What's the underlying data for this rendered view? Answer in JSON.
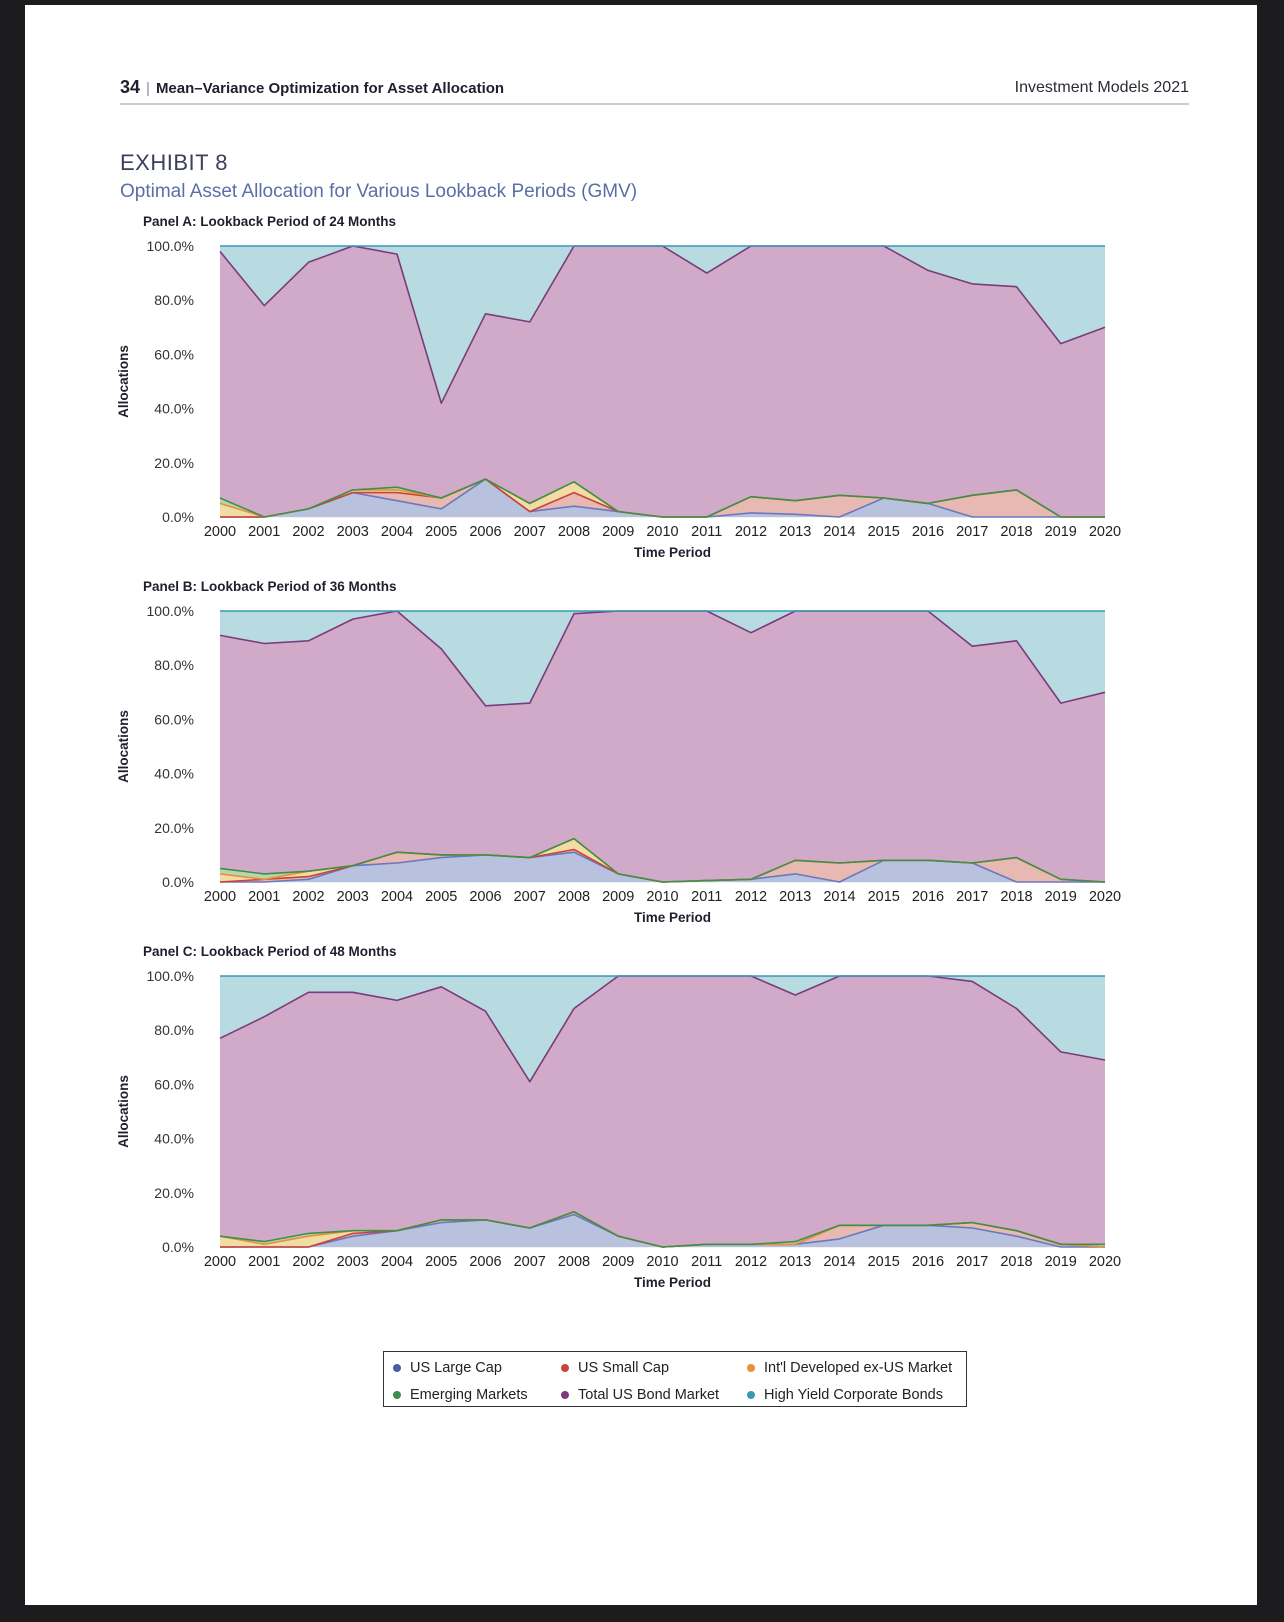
{
  "header": {
    "page_number": "34",
    "separator": "|",
    "chapter_title": "Mean–Variance Optimization for Asset Allocation",
    "publication": "Investment Models 2021"
  },
  "exhibit": {
    "label": "EXHIBIT 8",
    "title": "Optimal Asset Allocation for Various Lookback Periods (GMV)"
  },
  "legend": [
    {
      "name": "US Large Cap",
      "color": "#4a5ca8"
    },
    {
      "name": "US Small Cap",
      "color": "#c9443a"
    },
    {
      "name": "Int'l Developed ex-US Market",
      "color": "#e5923a"
    },
    {
      "name": "Emerging Markets",
      "color": "#3e8f4a"
    },
    {
      "name": "Total US Bond Market",
      "color": "#7a3b7c"
    },
    {
      "name": "High Yield Corporate Bonds",
      "color": "#3a98b6"
    }
  ],
  "chart_data": [
    {
      "type": "area",
      "stacked": true,
      "title": "Panel A: Lookback Period of 24 Months",
      "xlabel": "Time Period",
      "ylabel": "Allocations",
      "ylim": [
        0,
        100
      ],
      "yticks": [
        "0.0%",
        "20.0%",
        "40.0%",
        "60.0%",
        "80.0%",
        "100.0%"
      ],
      "grid": true,
      "categories": [
        "2000",
        "2001",
        "2002",
        "2003",
        "2004",
        "2005",
        "2006",
        "2007",
        "2008",
        "2009",
        "2010",
        "2011",
        "2012",
        "2013",
        "2014",
        "2015",
        "2016",
        "2017",
        "2018",
        "2019",
        "2020"
      ],
      "series": [
        {
          "name": "US Large Cap",
          "fill": "#b8c2de",
          "line": "#6a78c0",
          "values": [
            0,
            0,
            3,
            9,
            6,
            3,
            14,
            2,
            4,
            2,
            0,
            0,
            1.5,
            1,
            0,
            7,
            5,
            0,
            0,
            0,
            0
          ]
        },
        {
          "name": "US Small Cap",
          "fill": "#e8b8b2",
          "line": "#c9443a",
          "values": [
            0,
            0,
            0,
            0,
            3,
            4,
            0,
            0,
            5,
            0,
            0,
            0,
            6,
            5,
            8,
            0,
            0,
            8,
            10,
            0,
            0
          ]
        },
        {
          "name": "Int'l Developed ex-US Market",
          "fill": "#f2dca6",
          "line": "#e5923a",
          "values": [
            5,
            0,
            0,
            1,
            1,
            0,
            0,
            3,
            4,
            0,
            0,
            0,
            0,
            0,
            0,
            0,
            0,
            0,
            0,
            0,
            0
          ]
        },
        {
          "name": "Emerging Markets",
          "fill": "#b6d6b0",
          "line": "#3e8f4a",
          "values": [
            2,
            0,
            0,
            0,
            1,
            0,
            0,
            0,
            0,
            0,
            0,
            0,
            0,
            0,
            0,
            0,
            0,
            0,
            0,
            0,
            0
          ]
        },
        {
          "name": "Total US Bond Market",
          "fill": "#d0aac8",
          "line": "#7a3b7c",
          "values": [
            91,
            78,
            91,
            90,
            86,
            35,
            61,
            67,
            87,
            98,
            100,
            90,
            92.5,
            94,
            92,
            93,
            86,
            78,
            75,
            64,
            70
          ]
        },
        {
          "name": "High Yield Corporate Bonds",
          "fill": "#b8dbe1",
          "line": "#3a98b6",
          "values": [
            2,
            22,
            6,
            0,
            3,
            58,
            25,
            28,
            0,
            0,
            0,
            10,
            0,
            0,
            0,
            0,
            9,
            14,
            15,
            36,
            30
          ]
        }
      ]
    },
    {
      "type": "area",
      "stacked": true,
      "title": "Panel B: Lookback Period of 36 Months",
      "xlabel": "Time Period",
      "ylabel": "Allocations",
      "ylim": [
        0,
        100
      ],
      "yticks": [
        "0.0%",
        "20.0%",
        "40.0%",
        "60.0%",
        "80.0%",
        "100.0%"
      ],
      "grid": true,
      "categories": [
        "2000",
        "2001",
        "2002",
        "2003",
        "2004",
        "2005",
        "2006",
        "2007",
        "2008",
        "2009",
        "2010",
        "2011",
        "2012",
        "2013",
        "2014",
        "2015",
        "2016",
        "2017",
        "2018",
        "2019",
        "2020"
      ],
      "series": [
        {
          "name": "US Large Cap",
          "fill": "#b8c2de",
          "line": "#6a78c0",
          "values": [
            0,
            0,
            1,
            6,
            7,
            9,
            10,
            9,
            11,
            3,
            0,
            0.5,
            1,
            3,
            0,
            8,
            8,
            7,
            0,
            0,
            0
          ]
        },
        {
          "name": "US Small Cap",
          "fill": "#e8b8b2",
          "line": "#c9443a",
          "values": [
            0,
            1,
            1,
            0,
            4,
            1,
            0,
            0,
            1,
            0,
            0,
            0,
            0,
            5,
            7,
            0,
            0,
            0,
            9,
            1,
            0
          ]
        },
        {
          "name": "Int'l Developed ex-US Market",
          "fill": "#f2dca6",
          "line": "#e5923a",
          "values": [
            3,
            0,
            2,
            0,
            0,
            0,
            0,
            0,
            4,
            0,
            0,
            0,
            0,
            0,
            0,
            0,
            0,
            0,
            0,
            0,
            0
          ]
        },
        {
          "name": "Emerging Markets",
          "fill": "#b6d6b0",
          "line": "#3e8f4a",
          "values": [
            2,
            2,
            0,
            0,
            0,
            0,
            0,
            0,
            0,
            0,
            0,
            0,
            0,
            0,
            0,
            0,
            0,
            0,
            0,
            0,
            0
          ]
        },
        {
          "name": "Total US Bond Market",
          "fill": "#d0aac8",
          "line": "#7a3b7c",
          "values": [
            86,
            85,
            85,
            91,
            89,
            76,
            55,
            57,
            83,
            97,
            100,
            99.5,
            91,
            92,
            93,
            92,
            92,
            80,
            80,
            65,
            70
          ]
        },
        {
          "name": "High Yield Corporate Bonds",
          "fill": "#b8dbe1",
          "line": "#3a98b6",
          "values": [
            9,
            12,
            11,
            3,
            0,
            14,
            35,
            34,
            1,
            0,
            0,
            0,
            8,
            0,
            0,
            0,
            0,
            13,
            11,
            34,
            30
          ]
        }
      ]
    },
    {
      "type": "area",
      "stacked": true,
      "title": "Panel C: Lookback Period of 48 Months",
      "xlabel": "Time Period",
      "ylabel": "Allocations",
      "ylim": [
        0,
        100
      ],
      "yticks": [
        "0.0%",
        "20.0%",
        "40.0%",
        "60.0%",
        "80.0%",
        "100.0%"
      ],
      "grid": true,
      "categories": [
        "2000",
        "2001",
        "2002",
        "2003",
        "2004",
        "2005",
        "2006",
        "2007",
        "2008",
        "2009",
        "2010",
        "2011",
        "2012",
        "2013",
        "2014",
        "2015",
        "2016",
        "2017",
        "2018",
        "2019",
        "2020"
      ],
      "series": [
        {
          "name": "US Large Cap",
          "fill": "#b8c2de",
          "line": "#6a78c0",
          "values": [
            0,
            0,
            0,
            4,
            6,
            9,
            10,
            7,
            12,
            4,
            0,
            1,
            1,
            1,
            3,
            8,
            8,
            7,
            4,
            0,
            0
          ]
        },
        {
          "name": "US Small Cap",
          "fill": "#e8b8b2",
          "line": "#c9443a",
          "values": [
            0,
            0,
            0,
            1,
            0,
            1,
            0,
            0,
            1,
            0,
            0,
            0,
            0,
            0,
            5,
            0,
            0,
            2,
            2,
            1,
            0
          ]
        },
        {
          "name": "Int'l Developed ex-US Market",
          "fill": "#f2dca6",
          "line": "#e5923a",
          "values": [
            4,
            1,
            4,
            1,
            0,
            0,
            0,
            0,
            0,
            0,
            0,
            0,
            0,
            0,
            0,
            0,
            0,
            0,
            0,
            0,
            0
          ]
        },
        {
          "name": "Emerging Markets",
          "fill": "#b6d6b0",
          "line": "#3e8f4a",
          "values": [
            0,
            1,
            1,
            0,
            0,
            0,
            0,
            0,
            0,
            0,
            0,
            0,
            0,
            1,
            0,
            0,
            0,
            0,
            0,
            0,
            1
          ]
        },
        {
          "name": "Total US Bond Market",
          "fill": "#d0aac8",
          "line": "#7a3b7c",
          "values": [
            73,
            83,
            89,
            88,
            85,
            86,
            77,
            54,
            75,
            96,
            100,
            99,
            99,
            91,
            92,
            92,
            92,
            89,
            82,
            71,
            68
          ]
        },
        {
          "name": "High Yield Corporate Bonds",
          "fill": "#b8dbe1",
          "line": "#3a98b6",
          "values": [
            23,
            15,
            6,
            6,
            9,
            4,
            13,
            39,
            12,
            0,
            0,
            0,
            0,
            7,
            0,
            0,
            0,
            2,
            12,
            28,
            31
          ]
        }
      ]
    }
  ]
}
